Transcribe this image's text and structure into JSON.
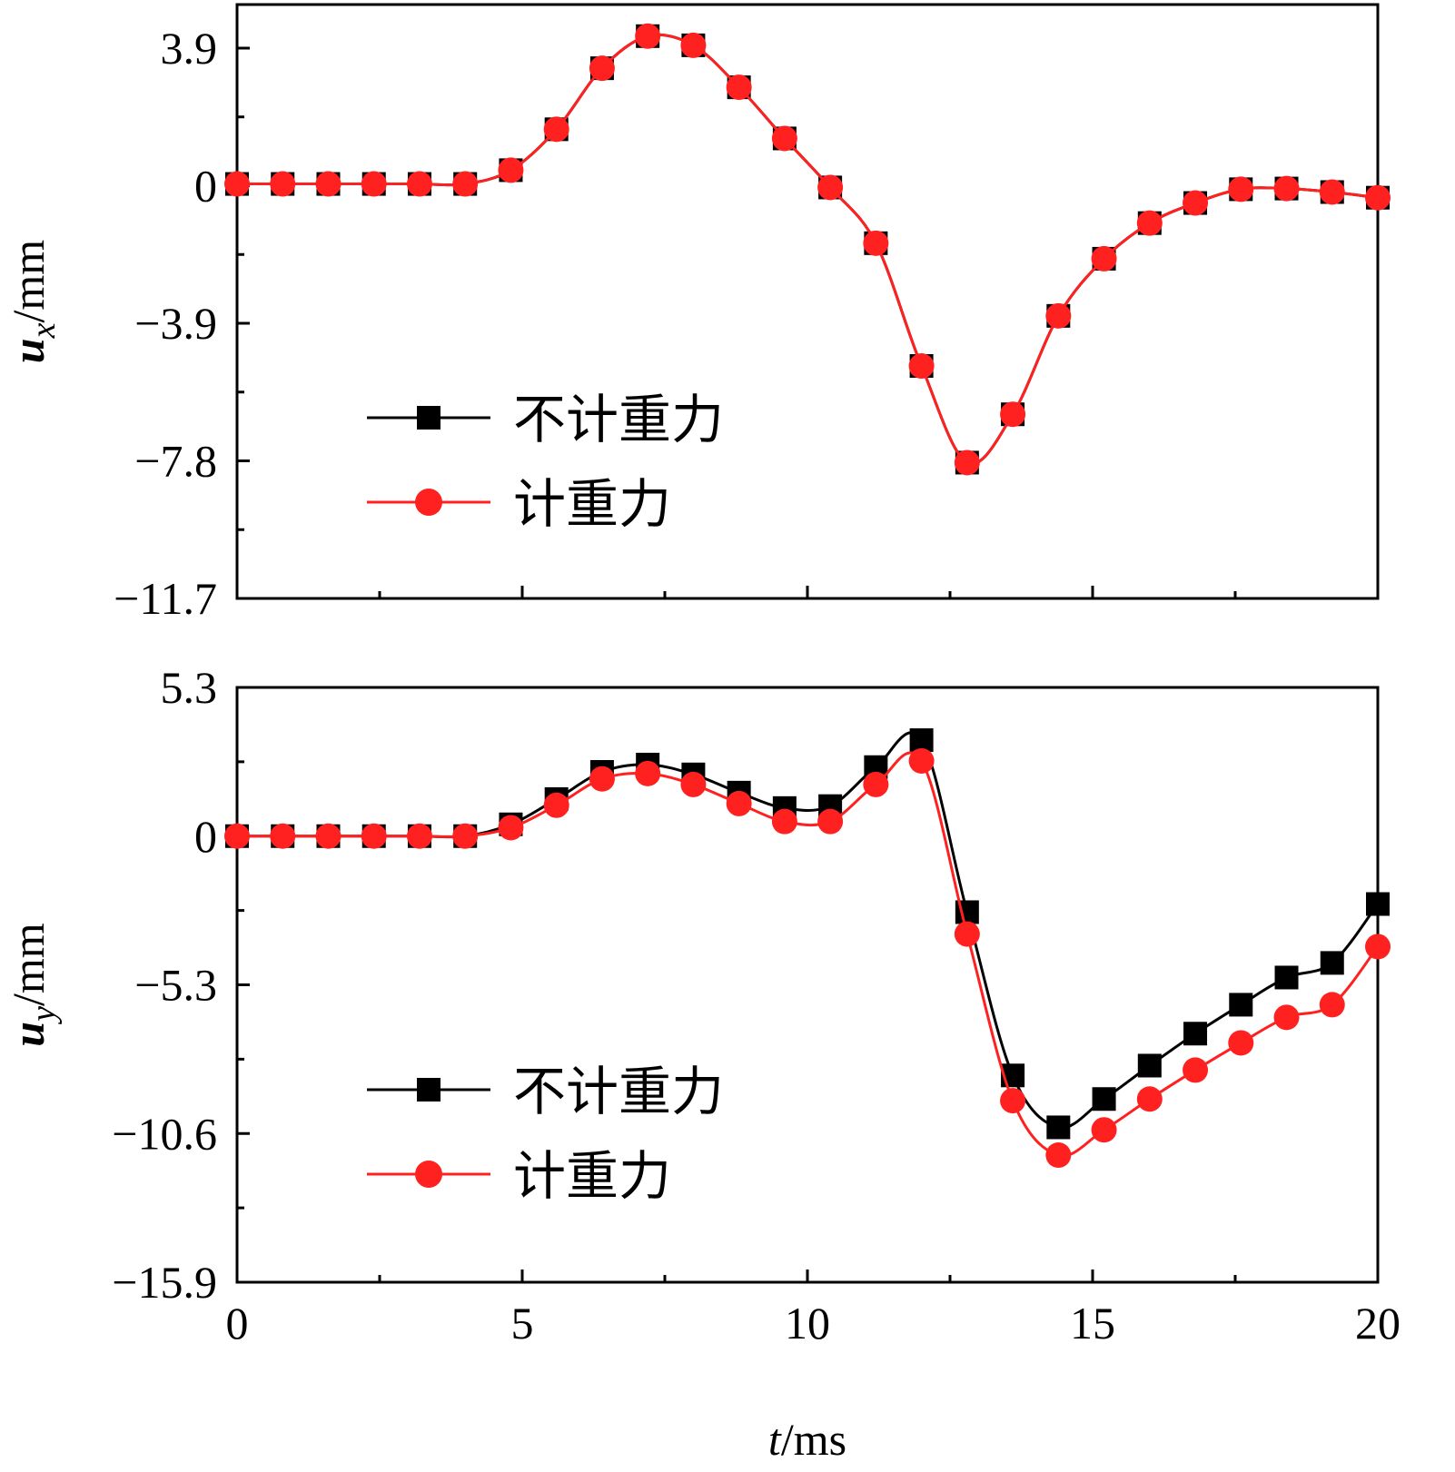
{
  "chart_data": [
    {
      "type": "line",
      "title": "",
      "xlabel": "",
      "ylabel_var": "u",
      "ylabel_sub": "x",
      "ylabel_unit": "/mm",
      "xlim": [
        0,
        20
      ],
      "ylim": [
        -11.7,
        5.2
      ],
      "yticks": [
        3.9,
        0,
        -3.9,
        -7.8,
        -11.7
      ],
      "ytick_labels": [
        "3.9",
        "0",
        "−3.9",
        "−7.8",
        "−11.7"
      ],
      "xticks": [
        0,
        5,
        10,
        15,
        20
      ],
      "xtick_labels": [],
      "legend_position": "lower-left",
      "x": [
        0,
        0.8,
        1.6,
        2.4,
        3.2,
        4.0,
        4.8,
        5.6,
        6.4,
        7.2,
        8.0,
        8.8,
        9.6,
        10.4,
        11.2,
        12.0,
        12.8,
        13.6,
        14.4,
        15.2,
        16.0,
        16.8,
        17.6,
        18.4,
        19.2,
        20.0
      ],
      "series": [
        {
          "name": "不计重力",
          "color": "#000000",
          "marker": "square",
          "values": [
            0.05,
            0.05,
            0.05,
            0.05,
            0.05,
            0.05,
            0.44,
            1.6,
            3.33,
            4.24,
            3.98,
            2.79,
            1.34,
            -0.05,
            -1.63,
            -5.11,
            -7.85,
            -6.48,
            -3.69,
            -2.07,
            -1.06,
            -0.49,
            -0.1,
            -0.08,
            -0.18,
            -0.34
          ]
        },
        {
          "name": "计重力",
          "color": "#ff2020",
          "marker": "circle",
          "values": [
            0.05,
            0.05,
            0.05,
            0.05,
            0.05,
            0.05,
            0.44,
            1.6,
            3.33,
            4.24,
            3.98,
            2.79,
            1.34,
            -0.05,
            -1.63,
            -5.11,
            -7.85,
            -6.48,
            -3.69,
            -2.07,
            -1.06,
            -0.49,
            -0.1,
            -0.08,
            -0.18,
            -0.34
          ]
        }
      ]
    },
    {
      "type": "line",
      "title": "",
      "xlabel_var": "t",
      "xlabel_unit": "/ms",
      "ylabel_var": "u",
      "ylabel_sub": "y",
      "ylabel_unit": "/mm",
      "xlim": [
        0,
        20
      ],
      "ylim": [
        -15.9,
        5.3
      ],
      "yticks": [
        5.3,
        0,
        -5.3,
        -10.6,
        -15.9
      ],
      "ytick_labels": [
        "5.3",
        "0",
        "−5.3",
        "−10.6",
        "−15.9"
      ],
      "xticks": [
        0,
        5,
        10,
        15,
        20
      ],
      "xtick_labels": [
        "0",
        "5",
        "10",
        "15",
        "20"
      ],
      "legend_position": "lower-left",
      "x": [
        0,
        0.8,
        1.6,
        2.4,
        3.2,
        4.0,
        4.8,
        5.6,
        6.4,
        7.2,
        8.0,
        8.8,
        9.6,
        10.4,
        11.2,
        12.0,
        12.8,
        13.6,
        14.4,
        15.2,
        16.0,
        16.8,
        17.6,
        18.4,
        19.2,
        20.0
      ],
      "series": [
        {
          "name": "不计重力",
          "color": "#000000",
          "marker": "square",
          "values": [
            0,
            0,
            0,
            0,
            0,
            0,
            0.42,
            1.32,
            2.29,
            2.55,
            2.2,
            1.55,
            1.0,
            1.07,
            2.46,
            3.42,
            -2.71,
            -8.53,
            -10.38,
            -9.37,
            -8.18,
            -7.04,
            -6.01,
            -5.04,
            -4.52,
            -2.42
          ]
        },
        {
          "name": "计重力",
          "color": "#ff2020",
          "marker": "circle",
          "values": [
            0,
            0,
            0,
            0,
            0,
            0,
            0.3,
            1.1,
            2.04,
            2.23,
            1.84,
            1.16,
            0.52,
            0.52,
            1.84,
            2.68,
            -3.49,
            -9.43,
            -11.37,
            -10.47,
            -9.37,
            -8.34,
            -7.37,
            -6.46,
            -6.01,
            -3.94
          ]
        }
      ]
    }
  ]
}
